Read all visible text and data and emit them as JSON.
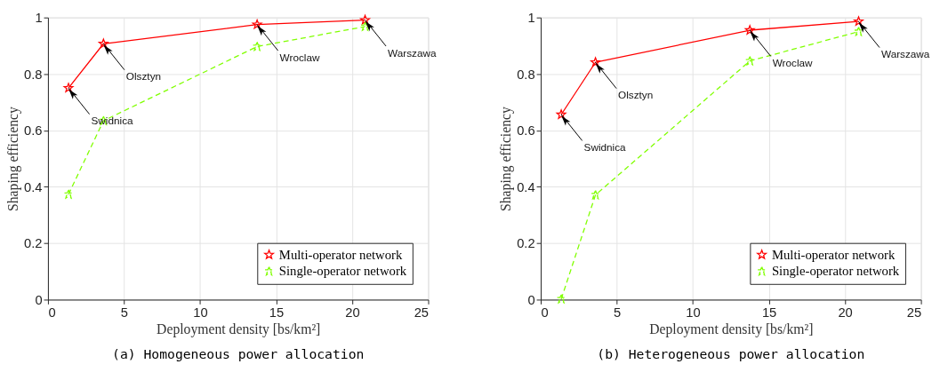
{
  "chart_data": [
    {
      "type": "line",
      "title": "(a)  Homogeneous power allocation",
      "xlabel": "Deployment density [bs/km²]",
      "ylabel": "Shaping efficiency",
      "xlim": [
        0,
        25
      ],
      "ylim": [
        0,
        1
      ],
      "xticks": [
        0,
        5,
        10,
        15,
        20,
        25
      ],
      "yticks": [
        0,
        0.2,
        0.4,
        0.6,
        0.8,
        1
      ],
      "grid": true,
      "legend": "bottom right",
      "marker": "star",
      "series": [
        {
          "name": "Multi-operator network",
          "color": "#ff0000",
          "line_style": "solid",
          "x": [
            1.35,
            3.65,
            13.75,
            20.85
          ],
          "values": [
            0.75,
            0.907,
            0.975,
            0.991
          ]
        },
        {
          "name": "Single-operator network",
          "color": "#80ff00",
          "line_style": "dashed",
          "x": [
            1.35,
            3.65,
            13.75,
            20.85
          ],
          "values": [
            0.373,
            0.634,
            0.897,
            0.968
          ]
        }
      ],
      "annotations": [
        {
          "text": "Swidnica",
          "x": 1.35,
          "y": 0.75
        },
        {
          "text": "Olsztyn",
          "x": 3.65,
          "y": 0.907
        },
        {
          "text": "Wroclaw",
          "x": 13.75,
          "y": 0.975
        },
        {
          "text": "Warszawa",
          "x": 20.85,
          "y": 0.991
        }
      ]
    },
    {
      "type": "line",
      "title": "(b)  Heterogeneous power allocation",
      "xlabel": "Deployment density [bs/km²]",
      "ylabel": "Shaping efficiency",
      "xlim": [
        0,
        25
      ],
      "ylim": [
        0,
        1
      ],
      "xticks": [
        0,
        5,
        10,
        15,
        20,
        25
      ],
      "yticks": [
        0,
        0.2,
        0.4,
        0.6,
        0.8,
        1
      ],
      "grid": true,
      "legend": "bottom right",
      "marker": "star",
      "series": [
        {
          "name": "Multi-operator network",
          "color": "#ff0000",
          "line_style": "solid",
          "x": [
            1.35,
            3.6,
            13.75,
            20.9
          ],
          "values": [
            0.656,
            0.841,
            0.955,
            0.986
          ]
        },
        {
          "name": "Single-operator network",
          "color": "#80ff00",
          "line_style": "dashed",
          "x": [
            1.35,
            3.6,
            13.75,
            20.9
          ],
          "values": [
            0.002,
            0.371,
            0.846,
            0.95
          ]
        }
      ],
      "annotations": [
        {
          "text": "Swidnica",
          "x": 1.35,
          "y": 0.656
        },
        {
          "text": "Olsztyn",
          "x": 3.6,
          "y": 0.841
        },
        {
          "text": "Wroclaw",
          "x": 13.75,
          "y": 0.955
        },
        {
          "text": "Warszawa",
          "x": 20.9,
          "y": 0.986
        }
      ]
    }
  ]
}
